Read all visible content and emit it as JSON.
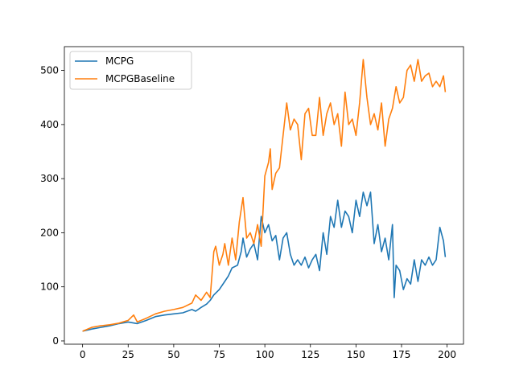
{
  "chart_data": {
    "type": "line",
    "title": "",
    "xlabel": "",
    "ylabel": "",
    "xlim": [
      -10,
      209
    ],
    "ylim": [
      -6,
      544
    ],
    "xticks": [
      0,
      25,
      50,
      75,
      100,
      125,
      150,
      175,
      200
    ],
    "yticks": [
      0,
      100,
      200,
      300,
      400,
      500
    ],
    "grid": false,
    "legend": "top-left",
    "series": [
      {
        "name": "MCPG",
        "color": "#1f77b4",
        "x": [
          0,
          5,
          10,
          15,
          20,
          25,
          30,
          35,
          40,
          45,
          50,
          55,
          60,
          62,
          65,
          68,
          70,
          72,
          75,
          78,
          80,
          82,
          85,
          87,
          88,
          90,
          92,
          94,
          96,
          98,
          100,
          102,
          104,
          106,
          108,
          110,
          112,
          114,
          116,
          118,
          120,
          122,
          124,
          126,
          128,
          130,
          132,
          134,
          136,
          138,
          140,
          142,
          144,
          146,
          148,
          150,
          152,
          154,
          156,
          158,
          160,
          162,
          164,
          166,
          168,
          170,
          171,
          172,
          174,
          176,
          178,
          180,
          182,
          184,
          186,
          188,
          190,
          192,
          194,
          196,
          198,
          199
        ],
        "values": [
          18,
          22,
          25,
          28,
          32,
          35,
          32,
          38,
          45,
          48,
          50,
          52,
          58,
          55,
          62,
          68,
          75,
          85,
          95,
          110,
          120,
          135,
          140,
          165,
          190,
          155,
          170,
          180,
          150,
          230,
          200,
          215,
          185,
          195,
          150,
          190,
          200,
          160,
          140,
          150,
          140,
          155,
          135,
          150,
          160,
          130,
          200,
          160,
          230,
          210,
          260,
          210,
          240,
          230,
          200,
          260,
          230,
          275,
          250,
          275,
          180,
          215,
          165,
          190,
          150,
          215,
          80,
          140,
          130,
          95,
          115,
          105,
          150,
          110,
          150,
          140,
          155,
          140,
          150,
          210,
          185,
          155
        ]
      },
      {
        "name": "MCPGBaseline",
        "color": "#ff7f0e",
        "x": [
          0,
          5,
          10,
          15,
          20,
          25,
          28,
          30,
          35,
          40,
          45,
          50,
          55,
          60,
          62,
          65,
          68,
          70,
          72,
          73,
          75,
          77,
          78,
          80,
          82,
          84,
          86,
          88,
          90,
          92,
          94,
          96,
          98,
          100,
          102,
          103,
          104,
          106,
          108,
          110,
          112,
          114,
          116,
          118,
          120,
          122,
          124,
          126,
          128,
          130,
          132,
          134,
          136,
          138,
          140,
          142,
          144,
          146,
          148,
          150,
          152,
          154,
          156,
          158,
          160,
          162,
          164,
          166,
          168,
          170,
          172,
          174,
          176,
          178,
          180,
          182,
          184,
          186,
          188,
          190,
          192,
          194,
          196,
          198,
          199
        ],
        "values": [
          18,
          25,
          28,
          30,
          33,
          38,
          48,
          35,
          42,
          50,
          55,
          58,
          62,
          70,
          85,
          75,
          90,
          80,
          165,
          175,
          140,
          160,
          180,
          140,
          190,
          150,
          220,
          265,
          190,
          200,
          180,
          215,
          175,
          305,
          330,
          355,
          280,
          310,
          320,
          380,
          440,
          390,
          410,
          400,
          335,
          420,
          430,
          380,
          380,
          450,
          380,
          420,
          440,
          400,
          420,
          360,
          460,
          400,
          410,
          380,
          440,
          520,
          450,
          400,
          420,
          390,
          440,
          360,
          410,
          430,
          470,
          440,
          450,
          500,
          510,
          480,
          520,
          480,
          490,
          495,
          470,
          480,
          470,
          490,
          460
        ]
      }
    ]
  }
}
